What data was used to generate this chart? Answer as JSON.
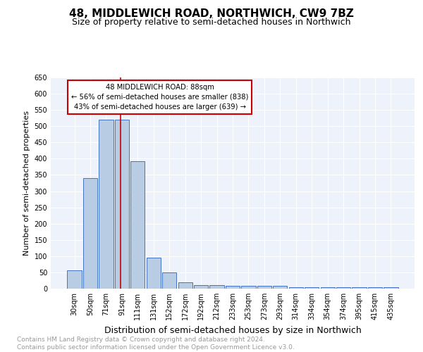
{
  "title": "48, MIDDLEWICH ROAD, NORTHWICH, CW9 7BZ",
  "subtitle": "Size of property relative to semi-detached houses in Northwich",
  "xlabel": "Distribution of semi-detached houses by size in Northwich",
  "ylabel": "Number of semi-detached properties",
  "categories": [
    "30sqm",
    "50sqm",
    "71sqm",
    "91sqm",
    "111sqm",
    "131sqm",
    "152sqm",
    "172sqm",
    "192sqm",
    "212sqm",
    "233sqm",
    "253sqm",
    "273sqm",
    "293sqm",
    "314sqm",
    "334sqm",
    "354sqm",
    "374sqm",
    "395sqm",
    "415sqm",
    "435sqm"
  ],
  "values": [
    57,
    340,
    519,
    519,
    393,
    95,
    50,
    20,
    10,
    10,
    8,
    8,
    8,
    8,
    4,
    4,
    4,
    4,
    4,
    4,
    5
  ],
  "bar_color": "#b8cce4",
  "bar_edge_color": "#4472c4",
  "vline_x": 2.9,
  "annotation_text": "48 MIDDLEWICH ROAD: 88sqm\n← 56% of semi-detached houses are smaller (838)\n43% of semi-detached houses are larger (639) →",
  "annotation_box_color": "#ffffff",
  "annotation_box_edge_color": "#cc0000",
  "vline_color": "#cc0000",
  "ylim": [
    0,
    650
  ],
  "yticks": [
    0,
    50,
    100,
    150,
    200,
    250,
    300,
    350,
    400,
    450,
    500,
    550,
    600,
    650
  ],
  "footer_line1": "Contains HM Land Registry data © Crown copyright and database right 2024.",
  "footer_line2": "Contains public sector information licensed under the Open Government Licence v3.0.",
  "background_color": "#eef2fa",
  "grid_color": "#ffffff",
  "title_fontsize": 11,
  "subtitle_fontsize": 9,
  "xlabel_fontsize": 9,
  "ylabel_fontsize": 8,
  "tick_fontsize": 7,
  "footer_fontsize": 6.5
}
